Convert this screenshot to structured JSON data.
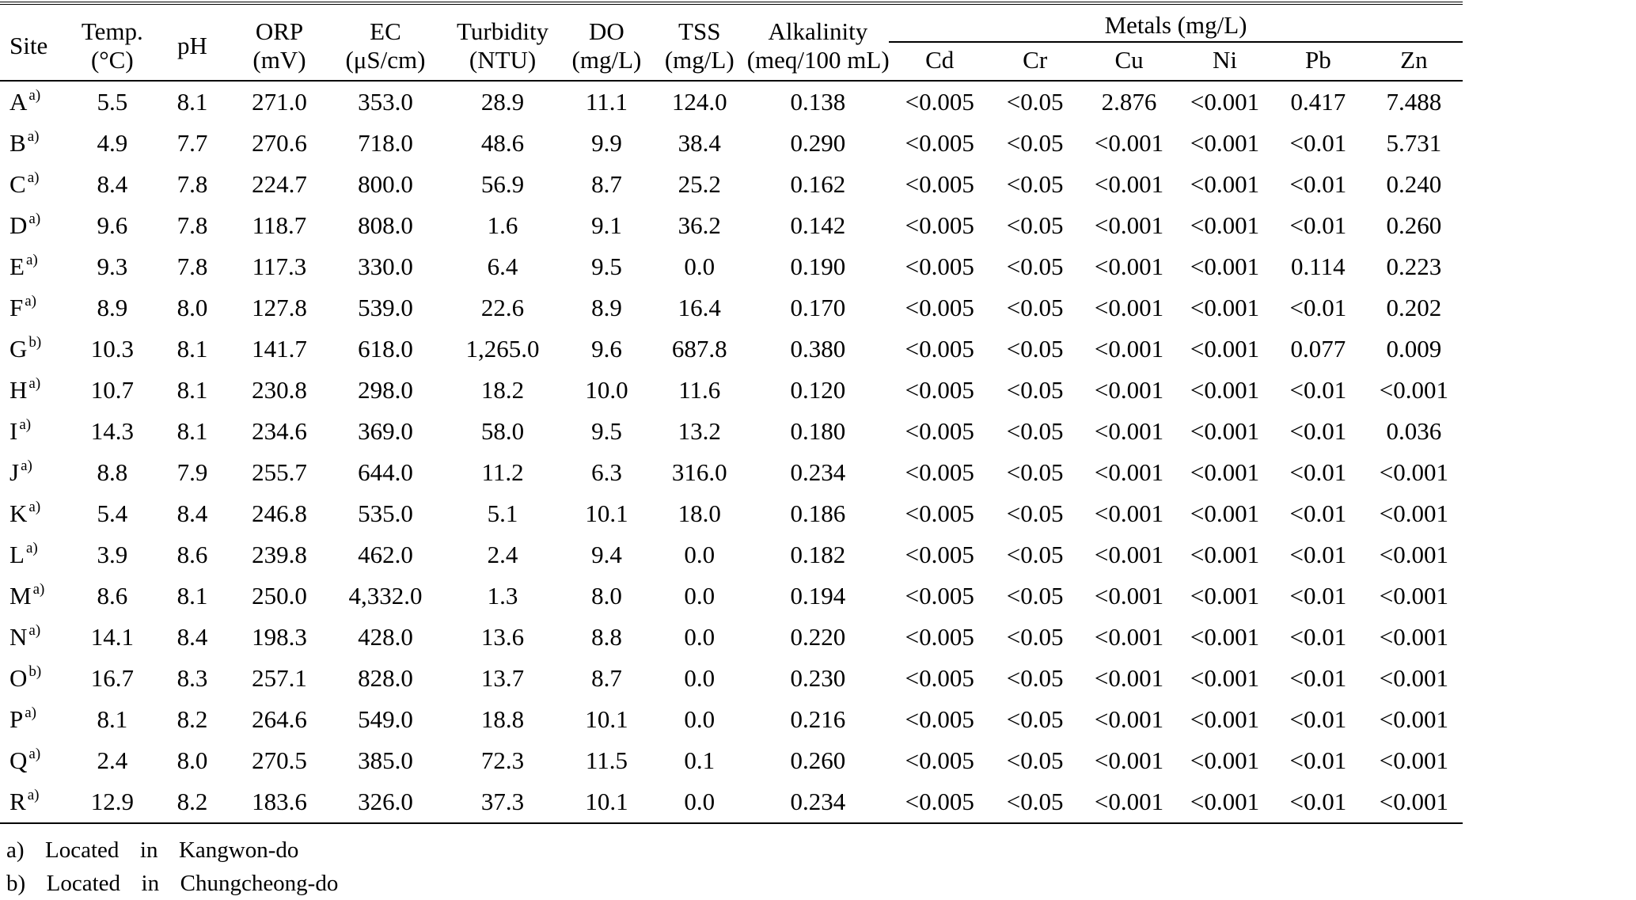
{
  "headers": {
    "site": "Site",
    "temp": [
      "Temp.",
      "(°C)"
    ],
    "ph": "pH",
    "orp": [
      "ORP",
      "(mV)"
    ],
    "ec": [
      "EC",
      "(μS/cm)"
    ],
    "turbidity": [
      "Turbidity",
      "(NTU)"
    ],
    "do": [
      "DO",
      "(mg/L)"
    ],
    "tss": [
      "TSS",
      "(mg/L)"
    ],
    "alkalinity": [
      "Alkalinity",
      "(meq/100 mL)"
    ],
    "metals_group": "Metals  (mg/L)",
    "metals": [
      "Cd",
      "Cr",
      "Cu",
      "Ni",
      "Pb",
      "Zn"
    ]
  },
  "rows": [
    {
      "site": "A",
      "fn": "a)",
      "temp": "5.5",
      "ph": "8.1",
      "orp": "271.0",
      "ec": "353.0",
      "turbidity": "28.9",
      "do": "11.1",
      "tss": "124.0",
      "alkalinity": "0.138",
      "cd": "<0.005",
      "cr": "<0.05",
      "cu": "2.876",
      "ni": "<0.001",
      "pb": "0.417",
      "zn": "7.488"
    },
    {
      "site": "B",
      "fn": "a)",
      "temp": "4.9",
      "ph": "7.7",
      "orp": "270.6",
      "ec": "718.0",
      "turbidity": "48.6",
      "do": "9.9",
      "tss": "38.4",
      "alkalinity": "0.290",
      "cd": "<0.005",
      "cr": "<0.05",
      "cu": "<0.001",
      "ni": "<0.001",
      "pb": "<0.01",
      "zn": "5.731"
    },
    {
      "site": "C",
      "fn": "a)",
      "temp": "8.4",
      "ph": "7.8",
      "orp": "224.7",
      "ec": "800.0",
      "turbidity": "56.9",
      "do": "8.7",
      "tss": "25.2",
      "alkalinity": "0.162",
      "cd": "<0.005",
      "cr": "<0.05",
      "cu": "<0.001",
      "ni": "<0.001",
      "pb": "<0.01",
      "zn": "0.240"
    },
    {
      "site": "D",
      "fn": "a)",
      "temp": "9.6",
      "ph": "7.8",
      "orp": "118.7",
      "ec": "808.0",
      "turbidity": "1.6",
      "do": "9.1",
      "tss": "36.2",
      "alkalinity": "0.142",
      "cd": "<0.005",
      "cr": "<0.05",
      "cu": "<0.001",
      "ni": "<0.001",
      "pb": "<0.01",
      "zn": "0.260"
    },
    {
      "site": "E",
      "fn": "a)",
      "temp": "9.3",
      "ph": "7.8",
      "orp": "117.3",
      "ec": "330.0",
      "turbidity": "6.4",
      "do": "9.5",
      "tss": "0.0",
      "alkalinity": "0.190",
      "cd": "<0.005",
      "cr": "<0.05",
      "cu": "<0.001",
      "ni": "<0.001",
      "pb": "0.114",
      "zn": "0.223"
    },
    {
      "site": "F",
      "fn": "a)",
      "temp": "8.9",
      "ph": "8.0",
      "orp": "127.8",
      "ec": "539.0",
      "turbidity": "22.6",
      "do": "8.9",
      "tss": "16.4",
      "alkalinity": "0.170",
      "cd": "<0.005",
      "cr": "<0.05",
      "cu": "<0.001",
      "ni": "<0.001",
      "pb": "<0.01",
      "zn": "0.202"
    },
    {
      "site": "G",
      "fn": "b)",
      "temp": "10.3",
      "ph": "8.1",
      "orp": "141.7",
      "ec": "618.0",
      "turbidity": "1,265.0",
      "do": "9.6",
      "tss": "687.8",
      "alkalinity": "0.380",
      "cd": "<0.005",
      "cr": "<0.05",
      "cu": "<0.001",
      "ni": "<0.001",
      "pb": "0.077",
      "zn": "0.009"
    },
    {
      "site": "H",
      "fn": "a)",
      "temp": "10.7",
      "ph": "8.1",
      "orp": "230.8",
      "ec": "298.0",
      "turbidity": "18.2",
      "do": "10.0",
      "tss": "11.6",
      "alkalinity": "0.120",
      "cd": "<0.005",
      "cr": "<0.05",
      "cu": "<0.001",
      "ni": "<0.001",
      "pb": "<0.01",
      "zn": "<0.001"
    },
    {
      "site": "I",
      "fn": "a)",
      "temp": "14.3",
      "ph": "8.1",
      "orp": "234.6",
      "ec": "369.0",
      "turbidity": "58.0",
      "do": "9.5",
      "tss": "13.2",
      "alkalinity": "0.180",
      "cd": "<0.005",
      "cr": "<0.05",
      "cu": "<0.001",
      "ni": "<0.001",
      "pb": "<0.01",
      "zn": "0.036"
    },
    {
      "site": "J",
      "fn": "a)",
      "temp": "8.8",
      "ph": "7.9",
      "orp": "255.7",
      "ec": "644.0",
      "turbidity": "11.2",
      "do": "6.3",
      "tss": "316.0",
      "alkalinity": "0.234",
      "cd": "<0.005",
      "cr": "<0.05",
      "cu": "<0.001",
      "ni": "<0.001",
      "pb": "<0.01",
      "zn": "<0.001"
    },
    {
      "site": "K",
      "fn": "a)",
      "temp": "5.4",
      "ph": "8.4",
      "orp": "246.8",
      "ec": "535.0",
      "turbidity": "5.1",
      "do": "10.1",
      "tss": "18.0",
      "alkalinity": "0.186",
      "cd": "<0.005",
      "cr": "<0.05",
      "cu": "<0.001",
      "ni": "<0.001",
      "pb": "<0.01",
      "zn": "<0.001"
    },
    {
      "site": "L",
      "fn": "a)",
      "temp": "3.9",
      "ph": "8.6",
      "orp": "239.8",
      "ec": "462.0",
      "turbidity": "2.4",
      "do": "9.4",
      "tss": "0.0",
      "alkalinity": "0.182",
      "cd": "<0.005",
      "cr": "<0.05",
      "cu": "<0.001",
      "ni": "<0.001",
      "pb": "<0.01",
      "zn": "<0.001"
    },
    {
      "site": "M",
      "fn": "a)",
      "temp": "8.6",
      "ph": "8.1",
      "orp": "250.0",
      "ec": "4,332.0",
      "turbidity": "1.3",
      "do": "8.0",
      "tss": "0.0",
      "alkalinity": "0.194",
      "cd": "<0.005",
      "cr": "<0.05",
      "cu": "<0.001",
      "ni": "<0.001",
      "pb": "<0.01",
      "zn": "<0.001"
    },
    {
      "site": "N",
      "fn": "a)",
      "temp": "14.1",
      "ph": "8.4",
      "orp": "198.3",
      "ec": "428.0",
      "turbidity": "13.6",
      "do": "8.8",
      "tss": "0.0",
      "alkalinity": "0.220",
      "cd": "<0.005",
      "cr": "<0.05",
      "cu": "<0.001",
      "ni": "<0.001",
      "pb": "<0.01",
      "zn": "<0.001"
    },
    {
      "site": "O",
      "fn": "b)",
      "temp": "16.7",
      "ph": "8.3",
      "orp": "257.1",
      "ec": "828.0",
      "turbidity": "13.7",
      "do": "8.7",
      "tss": "0.0",
      "alkalinity": "0.230",
      "cd": "<0.005",
      "cr": "<0.05",
      "cu": "<0.001",
      "ni": "<0.001",
      "pb": "<0.01",
      "zn": "<0.001"
    },
    {
      "site": "P",
      "fn": "a)",
      "temp": "8.1",
      "ph": "8.2",
      "orp": "264.6",
      "ec": "549.0",
      "turbidity": "18.8",
      "do": "10.1",
      "tss": "0.0",
      "alkalinity": "0.216",
      "cd": "<0.005",
      "cr": "<0.05",
      "cu": "<0.001",
      "ni": "<0.001",
      "pb": "<0.01",
      "zn": "<0.001"
    },
    {
      "site": "Q",
      "fn": "a)",
      "temp": "2.4",
      "ph": "8.0",
      "orp": "270.5",
      "ec": "385.0",
      "turbidity": "72.3",
      "do": "11.5",
      "tss": "0.1",
      "alkalinity": "0.260",
      "cd": "<0.005",
      "cr": "<0.05",
      "cu": "<0.001",
      "ni": "<0.001",
      "pb": "<0.01",
      "zn": "<0.001"
    },
    {
      "site": "R",
      "fn": "a)",
      "temp": "12.9",
      "ph": "8.2",
      "orp": "183.6",
      "ec": "326.0",
      "turbidity": "37.3",
      "do": "10.1",
      "tss": "0.0",
      "alkalinity": "0.234",
      "cd": "<0.005",
      "cr": "<0.05",
      "cu": "<0.001",
      "ni": "<0.001",
      "pb": "<0.01",
      "zn": "<0.001"
    }
  ],
  "footnotes": [
    "a)  Located  in  Kangwon-do",
    "b)  Located  in  Chungcheong-do"
  ]
}
